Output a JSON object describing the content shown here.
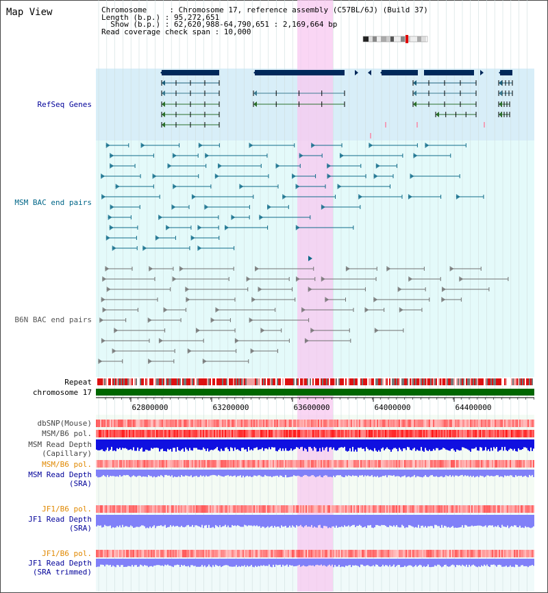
{
  "title": "Map View",
  "info": {
    "l1": "Chromosome     : Chromosome 17, reference assembly (C57BL/6J) (Build 37)",
    "l2": "Length (b.p.) : 95,272,651",
    "l3": "  Show (b.p.) : 62,620,988-64,790,651 : 2,169,664 bp",
    "l4": "Read coverage check span : 10,000"
  },
  "tracks": {
    "refseq": "RefSeq Genes",
    "msm_bac": "MSM BAC end pairs",
    "b6n_bac": "B6N BAC end pairs",
    "repeat": "Repeat",
    "chrom": "chromosome 17",
    "dbsnp": "dbSNP(Mouse)",
    "msm_pol1": "MSM/B6 pol.",
    "msm_rd_cap_1": "MSM Read Depth",
    "msm_rd_cap_2": "(Capillary)",
    "msm_pol2": "MSM/B6 pol.",
    "msm_rd_sra_1": "MSM Read Depth",
    "msm_rd_sra_2": "(SRA)",
    "jf1_pol1": "JF1/B6 pol.",
    "jf1_rd_sra_1": "JF1 Read Depth",
    "jf1_rd_sra_2": "(SRA)",
    "jf1_pol2": "JF1/B6 pol.",
    "jf1_rd_tr_1": "JF1 Read Depth",
    "jf1_rd_tr_2": "(SRA trimmed)"
  },
  "axis_ticks": [
    "62800000",
    "63200000",
    "63600000",
    "64000000",
    "64400000"
  ],
  "colors": {
    "refseq_bg": "#d8eef8",
    "bac_bg": "#e4fafa",
    "highlight": "#f8c8f0",
    "gene_dark": "#00285a",
    "msm_bac": "#0e6a88",
    "b6n_bac": "#707070",
    "chrom": "#006600",
    "label_blue": "#000099",
    "label_orange": "#e08800",
    "read_depth_dark": "#1010e0",
    "read_depth_light": "#8080f8"
  }
}
